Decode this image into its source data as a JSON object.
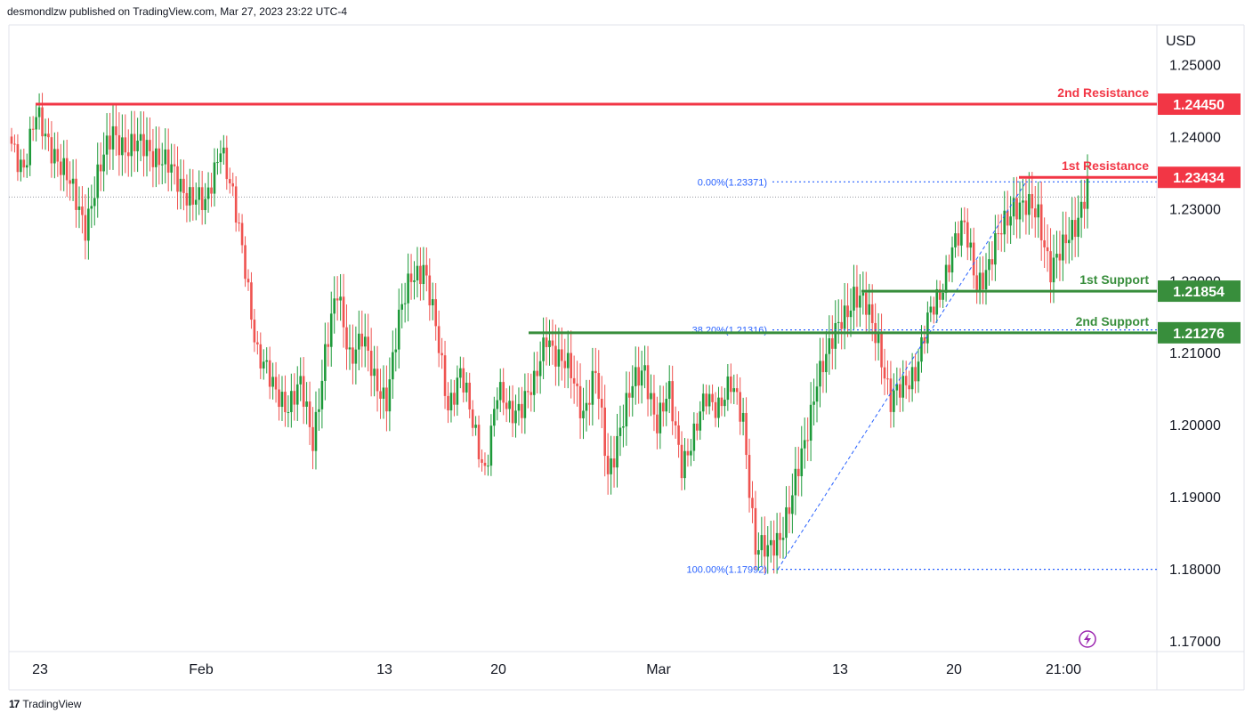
{
  "header": {
    "published": "desmondlzw published on TradingView.com, Mar 27, 2023 23:22 UTC-4"
  },
  "footer": {
    "brand_name": "TradingView",
    "brand_icon": "tradingview-logo-icon"
  },
  "colors": {
    "up": "#26a69a",
    "up_body": "#1e9a3a",
    "down": "#ef5350",
    "resistance": "#f23645",
    "support": "#388e3c",
    "fib": "#2962ff"
  },
  "chart_data": {
    "type": "candlestick",
    "currency": "USD",
    "y_ticks": [
      "1.25000",
      "1.24000",
      "1.23000",
      "1.22000",
      "1.21000",
      "1.20000",
      "1.19000",
      "1.18000",
      "1.17000"
    ],
    "y_tick_values": [
      1.25,
      1.24,
      1.23,
      1.22,
      1.21,
      1.2,
      1.19,
      1.18,
      1.17
    ],
    "ylim": [
      1.1685,
      1.2555
    ],
    "x_ticks": [
      "23",
      "Feb",
      "13",
      "20",
      "Mar",
      "13",
      "20",
      "21:00"
    ],
    "levels": [
      {
        "label": "2nd Resistance",
        "value": "1.24450",
        "kind": "resistance",
        "v": 1.2445
      },
      {
        "label": "1st Resistance",
        "value": "1.23434",
        "kind": "resistance",
        "v": 1.23434
      },
      {
        "label": "1st Support",
        "value": "1.21854",
        "kind": "support",
        "v": 1.21854
      },
      {
        "label": "2nd Support",
        "value": "1.21276",
        "kind": "support",
        "v": 1.21276
      }
    ],
    "fib_levels": [
      {
        "label": "0.00%(1.23371)",
        "v": 1.23371
      },
      {
        "label": "38.20%(1.21316)",
        "v": 1.21316
      },
      {
        "label": "100.00%(1.17992)",
        "v": 1.17992
      }
    ],
    "last_price_line": 1.2316,
    "anchors": [
      [
        0,
        1.239
      ],
      [
        4,
        1.236
      ],
      [
        8,
        1.2425
      ],
      [
        14,
        1.238
      ],
      [
        20,
        1.232
      ],
      [
        24,
        1.228
      ],
      [
        28,
        1.234
      ],
      [
        33,
        1.241
      ],
      [
        38,
        1.238
      ],
      [
        44,
        1.239
      ],
      [
        50,
        1.236
      ],
      [
        58,
        1.232
      ],
      [
        63,
        1.23
      ],
      [
        68,
        1.2395
      ],
      [
        72,
        1.231
      ],
      [
        76,
        1.222
      ],
      [
        80,
        1.21
      ],
      [
        85,
        1.205
      ],
      [
        90,
        1.203
      ],
      [
        94,
        1.205
      ],
      [
        98,
        1.198
      ],
      [
        102,
        1.21
      ],
      [
        106,
        1.218
      ],
      [
        110,
        1.21
      ],
      [
        114,
        1.212
      ],
      [
        118,
        1.206
      ],
      [
        122,
        1.204
      ],
      [
        126,
        1.214
      ],
      [
        130,
        1.221
      ],
      [
        134,
        1.222
      ],
      [
        138,
        1.213
      ],
      [
        142,
        1.203
      ],
      [
        146,
        1.207
      ],
      [
        150,
        1.2
      ],
      [
        154,
        1.194
      ],
      [
        158,
        1.204
      ],
      [
        162,
        1.202
      ],
      [
        166,
        1.203
      ],
      [
        170,
        1.205
      ],
      [
        174,
        1.213
      ],
      [
        178,
        1.209
      ],
      [
        182,
        1.207
      ],
      [
        186,
        1.202
      ],
      [
        190,
        1.207
      ],
      [
        194,
        1.193
      ],
      [
        198,
        1.2
      ],
      [
        202,
        1.205
      ],
      [
        206,
        1.208
      ],
      [
        210,
        1.2
      ],
      [
        214,
        1.204
      ],
      [
        218,
        1.195
      ],
      [
        222,
        1.198
      ],
      [
        226,
        1.204
      ],
      [
        230,
        1.203
      ],
      [
        234,
        1.205
      ],
      [
        238,
        1.201
      ],
      [
        242,
        1.183
      ],
      [
        246,
        1.182
      ],
      [
        250,
        1.185
      ],
      [
        254,
        1.19
      ],
      [
        258,
        1.197
      ],
      [
        262,
        1.207
      ],
      [
        266,
        1.21
      ],
      [
        270,
        1.215
      ],
      [
        274,
        1.218
      ],
      [
        278,
        1.216
      ],
      [
        282,
        1.212
      ],
      [
        286,
        1.203
      ],
      [
        290,
        1.205
      ],
      [
        294,
        1.208
      ],
      [
        298,
        1.214
      ],
      [
        302,
        1.218
      ],
      [
        306,
        1.225
      ],
      [
        310,
        1.227
      ],
      [
        314,
        1.22
      ],
      [
        318,
        1.222
      ],
      [
        322,
        1.227
      ],
      [
        326,
        1.231
      ],
      [
        330,
        1.23
      ],
      [
        334,
        1.229
      ],
      [
        338,
        1.222
      ],
      [
        342,
        1.224
      ],
      [
        346,
        1.228
      ],
      [
        350,
        1.2335
      ]
    ]
  }
}
